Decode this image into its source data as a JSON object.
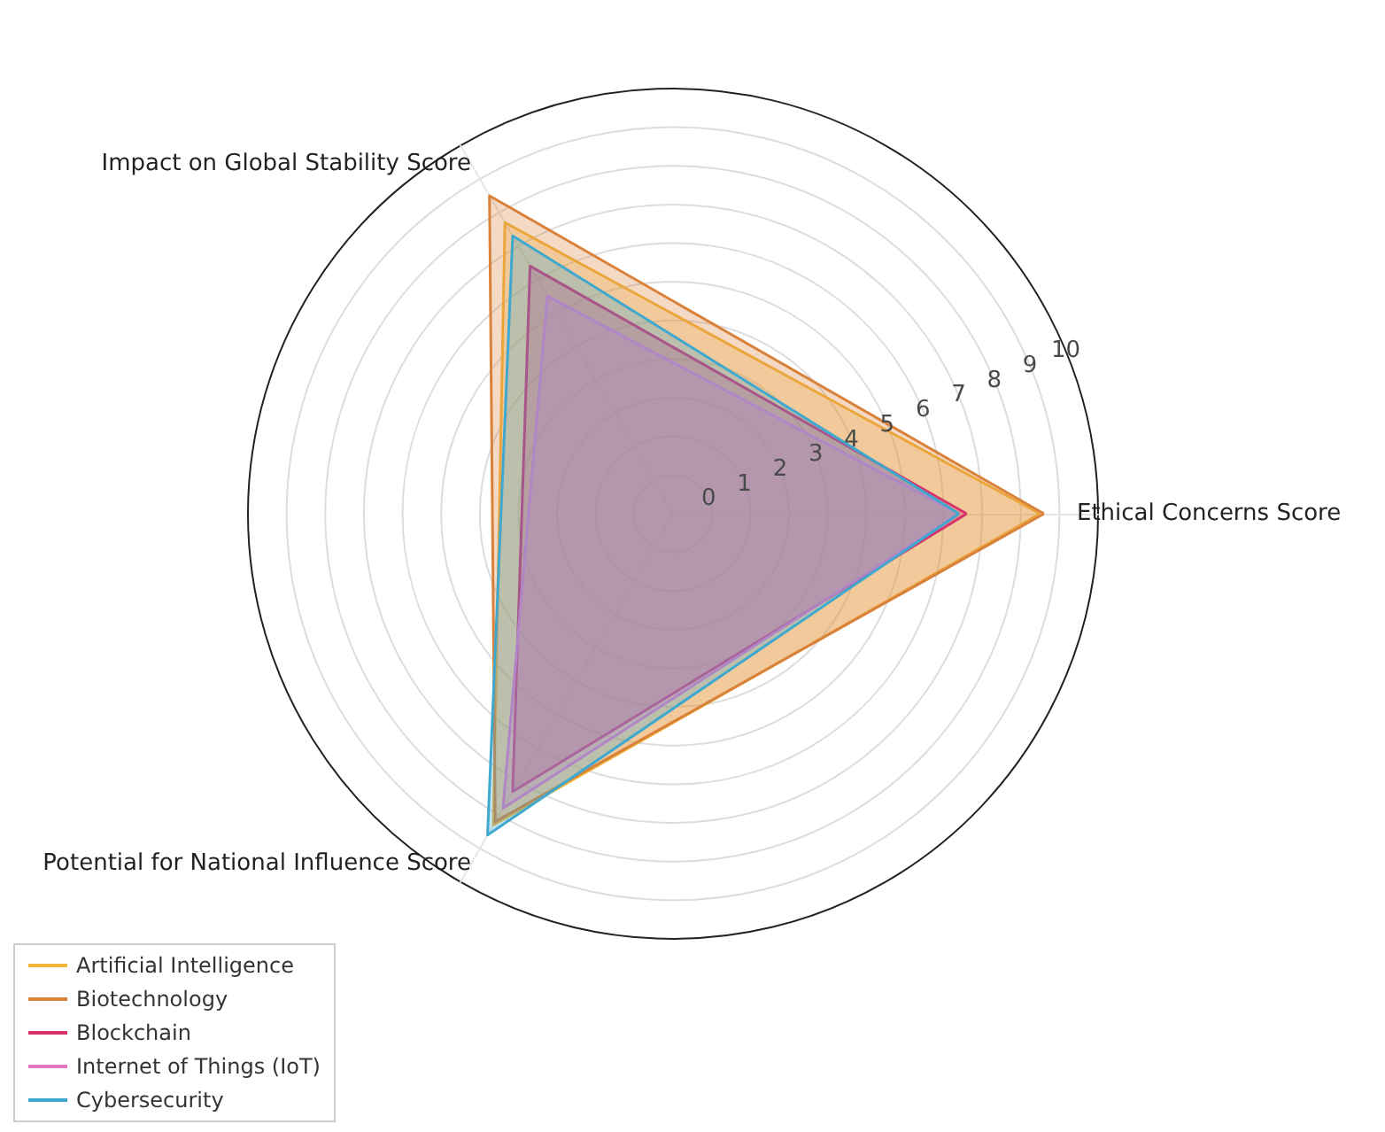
{
  "chart_data": {
    "type": "radar",
    "categories": [
      "Ethical Concerns Score",
      "Potential for National Influence Score",
      "Impact on Global Stability Score"
    ],
    "ylim": [
      -1,
      10
    ],
    "yticks": [
      0,
      1,
      2,
      3,
      4,
      5,
      6,
      7,
      8,
      9,
      10
    ],
    "grid": true,
    "legend": "bottom left",
    "series": [
      {
        "name": "Artificial Intelligence",
        "color": "#f2b63d",
        "values": [
          8.5,
          8.3,
          7.7
        ]
      },
      {
        "name": "Biotechnology",
        "color": "#d9823b",
        "values": [
          8.6,
          8.2,
          8.5
        ]
      },
      {
        "name": "Blockchain",
        "color": "#d6336c",
        "values": [
          6.6,
          7.3,
          6.4
        ]
      },
      {
        "name": "Internet of Things (IoT)",
        "color": "#e377c2",
        "values": [
          6.4,
          7.8,
          5.5
        ]
      },
      {
        "name": "Cybersecurity",
        "color": "#3fa8cf",
        "values": [
          6.4,
          8.6,
          7.3
        ]
      }
    ]
  }
}
